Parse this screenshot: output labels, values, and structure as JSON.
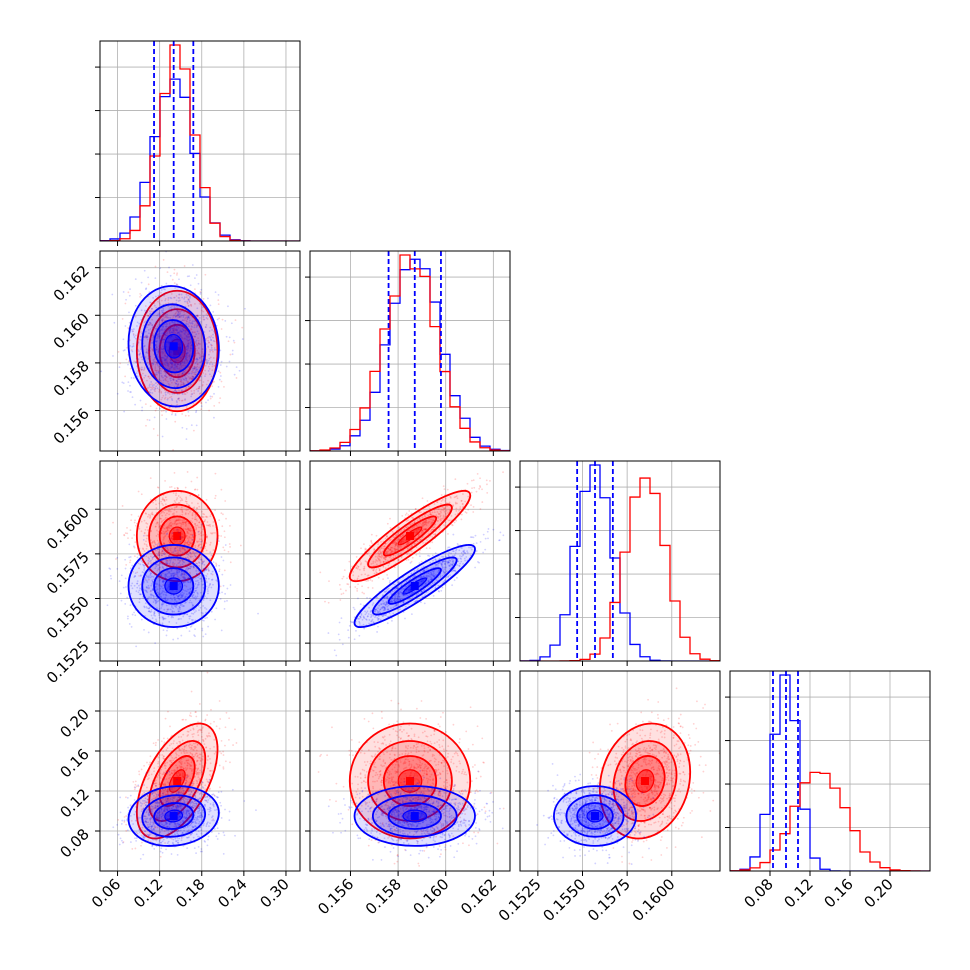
{
  "chart_data": {
    "type": "corner",
    "n_params": 4,
    "grid": true,
    "colors": {
      "blue": "#0000ff",
      "red": "#ff0000"
    },
    "axes_ranges": [
      [
        0.035,
        0.32
      ],
      [
        0.1543,
        0.1627
      ],
      [
        0.1515,
        0.1627
      ],
      [
        0.04,
        0.24
      ]
    ],
    "ticks": [
      {
        "values": [
          0.06,
          0.12,
          0.18,
          0.24,
          0.3
        ],
        "labels": [
          "0.06",
          "0.12",
          "0.18",
          "0.24",
          "0.30"
        ]
      },
      {
        "values": [
          0.156,
          0.158,
          0.16,
          0.162
        ],
        "labels": [
          "0.156",
          "0.158",
          "0.160",
          "0.162"
        ]
      },
      {
        "values": [
          0.1525,
          0.155,
          0.1575,
          0.16
        ],
        "labels": [
          "0.1525",
          "0.1550",
          "0.1575",
          "0.1600"
        ]
      },
      {
        "values": [
          0.08,
          0.12,
          0.16,
          0.2
        ],
        "labels": [
          "0.08",
          "0.12",
          "0.16",
          "0.20"
        ]
      }
    ],
    "series": [
      {
        "color": "#0000ff",
        "means": [
          0.14,
          0.1587,
          0.1557,
          0.095
        ],
        "sds": [
          0.028,
          0.0011,
          0.001,
          0.013
        ],
        "correlations": [
          [
            0,
            1,
            -0.05
          ],
          [
            0,
            2,
            0.0
          ],
          [
            0,
            3,
            0.1
          ],
          [
            1,
            2,
            0.9
          ],
          [
            1,
            3,
            0.0
          ],
          [
            2,
            3,
            0.0
          ]
        ],
        "quantiles_16_50_84": [
          [
            0.112,
            0.14,
            0.168
          ],
          [
            0.1576,
            0.1587,
            0.1598
          ],
          [
            0.1547,
            0.1557,
            0.1567
          ],
          [
            0.083,
            0.096,
            0.108
          ]
        ]
      },
      {
        "color": "#ff0000",
        "means": [
          0.145,
          0.1585,
          0.1585,
          0.13
        ],
        "sds": [
          0.025,
          0.0011,
          0.0011,
          0.025
        ],
        "correlations": [
          [
            0,
            1,
            0.0
          ],
          [
            0,
            2,
            0.0
          ],
          [
            0,
            3,
            0.55
          ],
          [
            1,
            2,
            0.9
          ],
          [
            1,
            3,
            0.0
          ],
          [
            2,
            3,
            0.15
          ]
        ]
      }
    ]
  }
}
